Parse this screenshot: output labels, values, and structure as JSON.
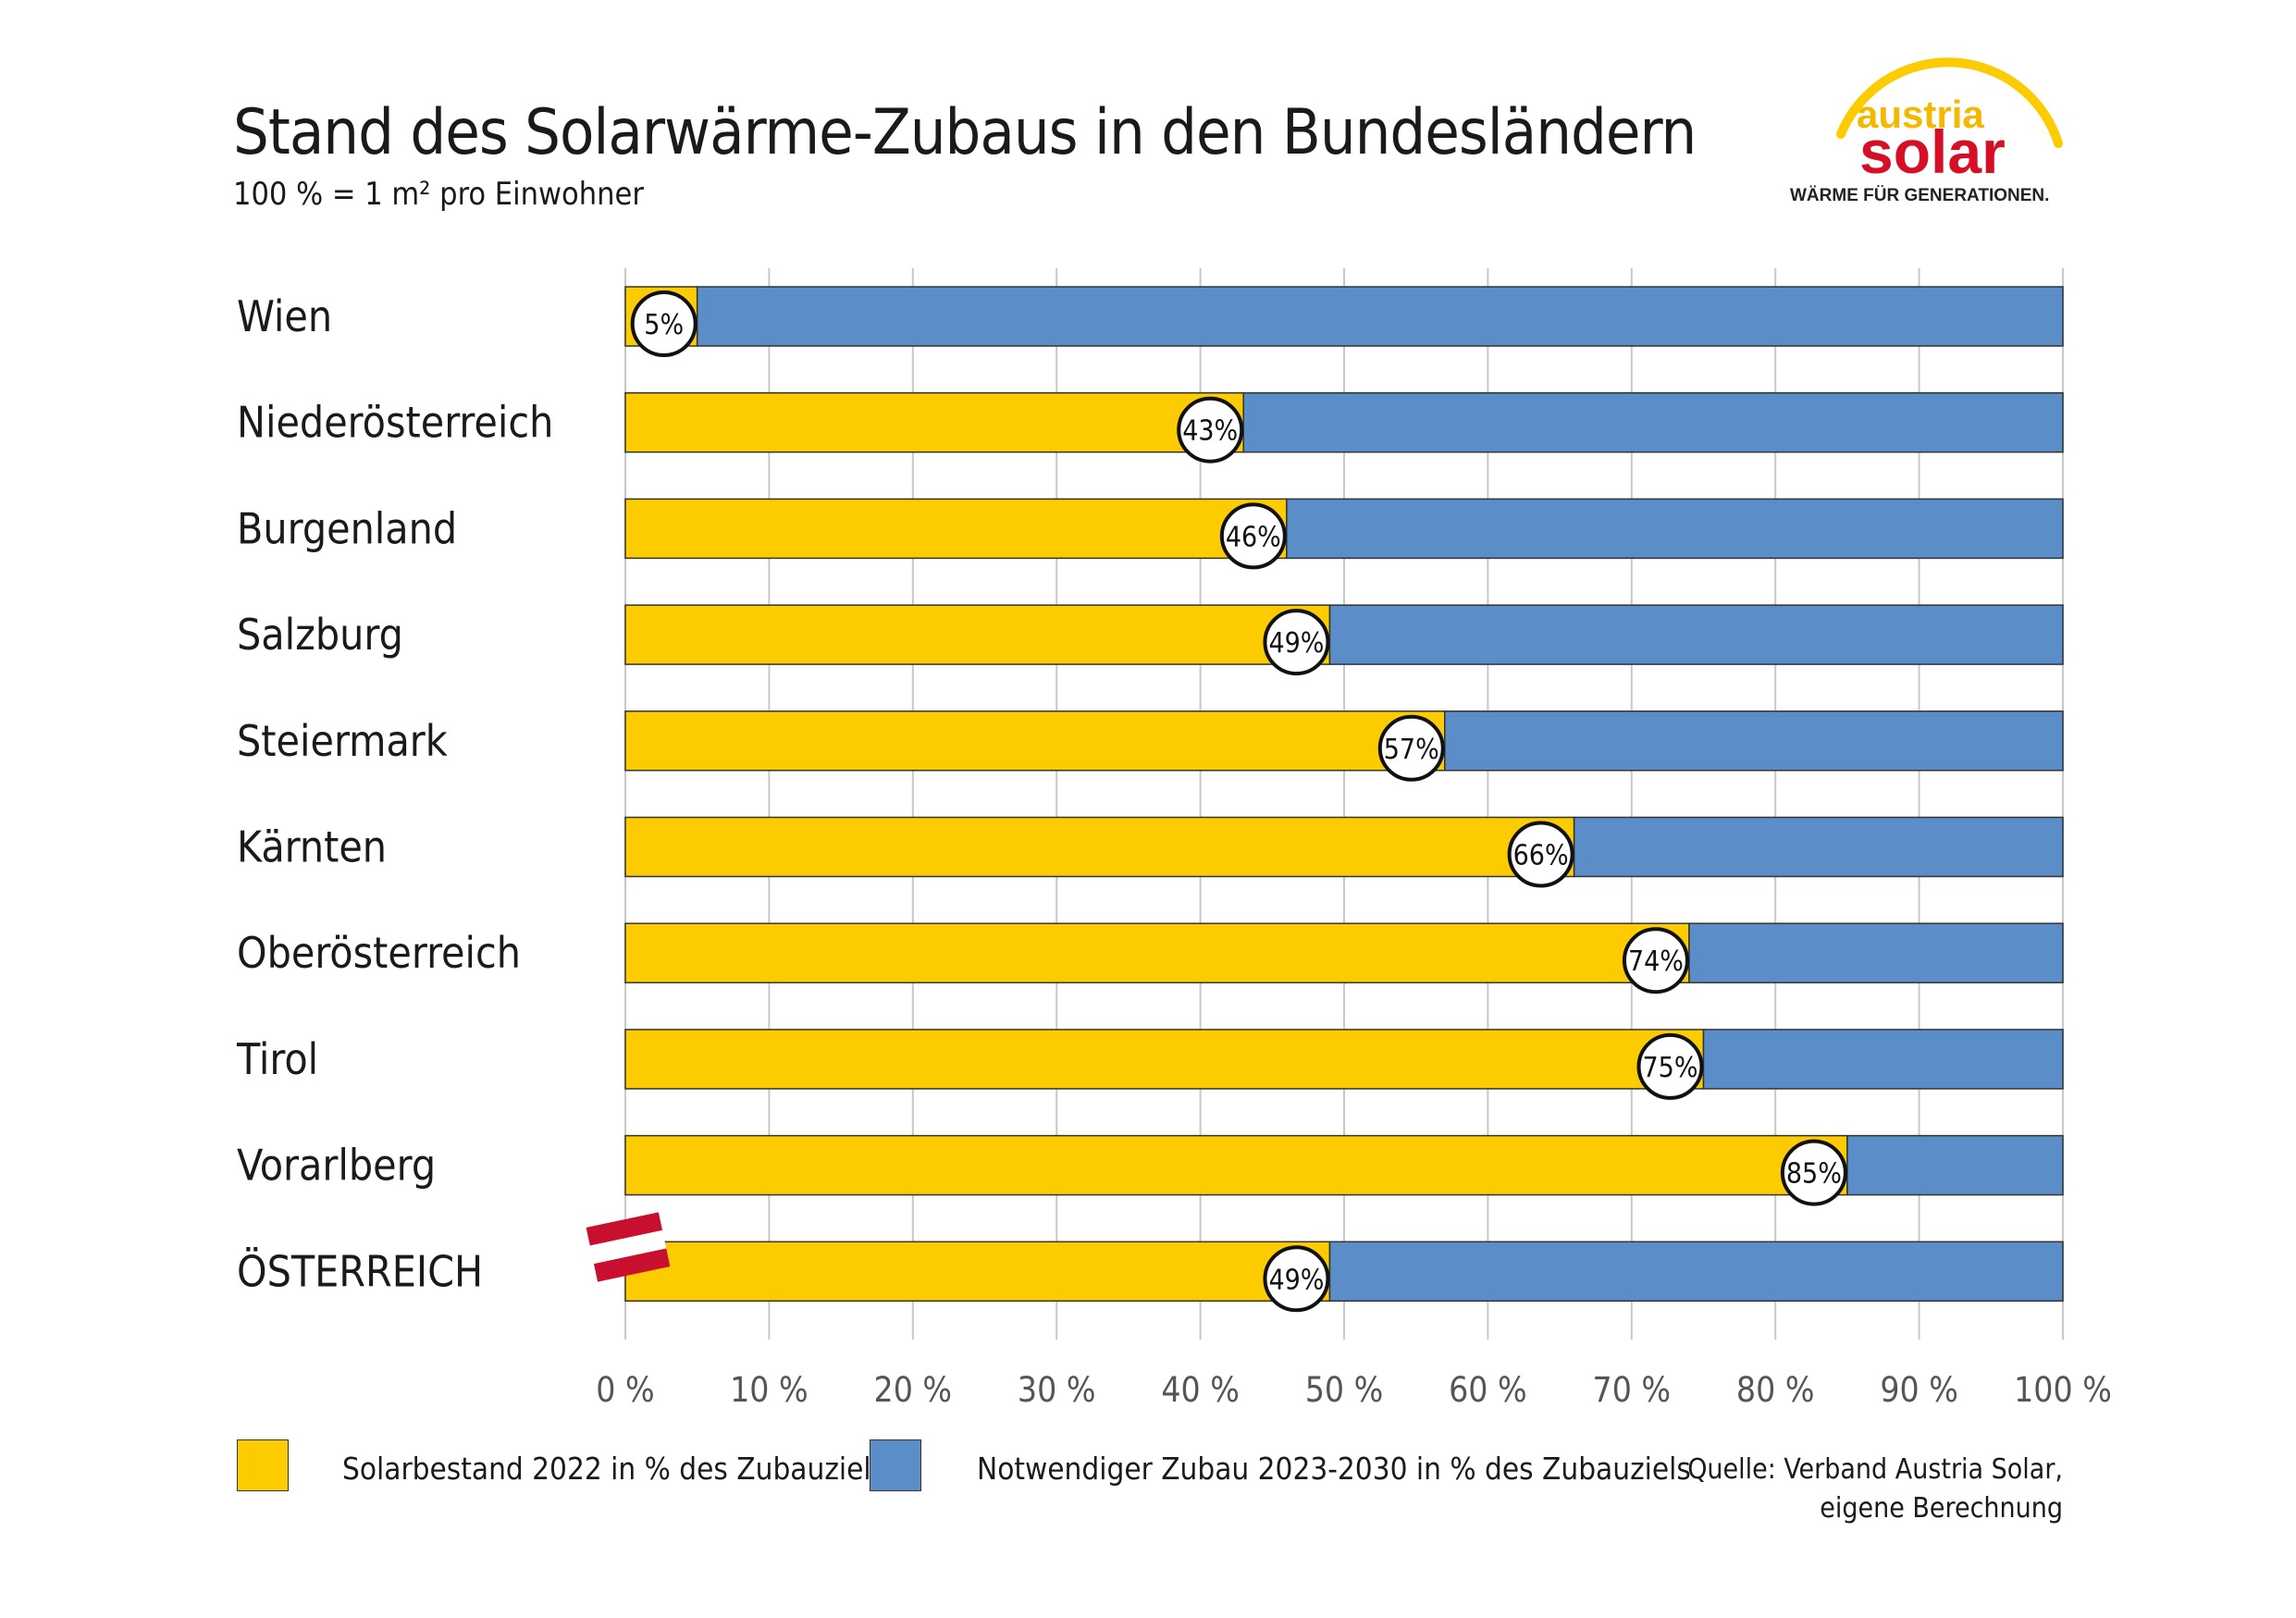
{
  "title": "Stand des Solarwärme-Zubaus in den Bundesländern",
  "subtitle": "100 % = 1 m² pro Einwohner",
  "logo": {
    "line1": "austria",
    "line2": "solar",
    "tagline": "WÄRME FÜR GENERATIONEN."
  },
  "legend": {
    "item1": "Solarbestand 2022 in % des Zubauziels",
    "item2": "Notwendiger Zubau 2023-2030 in % des Zubauziels"
  },
  "source": {
    "line1": "Quelle: Verband Austria Solar,",
    "line2": "eigene Berechnung"
  },
  "colors": {
    "bestand": "#fccb00",
    "zubau": "#5b8ec9",
    "gridline": "#c8c8c8",
    "flag_red": "#c8102e"
  },
  "chart_data": {
    "type": "bar",
    "orientation": "horizontal",
    "stacked": true,
    "categories": [
      "Wien",
      "Niederösterreich",
      "Burgenland",
      "Salzburg",
      "Steiermark",
      "Kärnten",
      "Oberösterreich",
      "Tirol",
      "Vorarlberg",
      "ÖSTERREICH"
    ],
    "series": [
      {
        "name": "Solarbestand 2022 in % des Zubauziels",
        "values": [
          5,
          43,
          46,
          49,
          57,
          66,
          74,
          75,
          85,
          49
        ]
      },
      {
        "name": "Notwendiger Zubau 2023-2030 in % des Zubauziels",
        "values": [
          95,
          57,
          54,
          51,
          43,
          34,
          26,
          25,
          15,
          51
        ]
      }
    ],
    "data_labels": [
      "5%",
      "43%",
      "46%",
      "49%",
      "57%",
      "66%",
      "74%",
      "75%",
      "85%",
      "49%"
    ],
    "xlim": [
      0,
      100
    ],
    "xticks": [
      "0 %",
      "10 %",
      "20 %",
      "30 %",
      "40 %",
      "50 %",
      "60 %",
      "70 %",
      "80 %",
      "90 %",
      "100 %"
    ],
    "grid": "vertical",
    "legend_position": "bottom"
  }
}
